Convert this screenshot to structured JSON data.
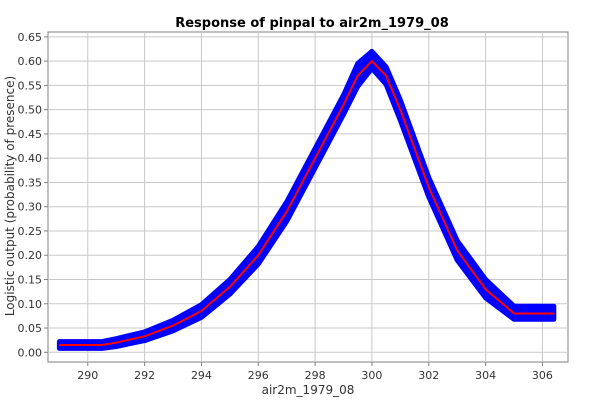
{
  "chart_data": {
    "type": "line",
    "title": "Response of pinpal to air2m_1979_08",
    "xlabel": "air2m_1979_08",
    "ylabel": "Logistic output (probability of presence)",
    "xlim": [
      288.6,
      306.9
    ],
    "ylim": [
      -0.02,
      0.66
    ],
    "x_ticks": [
      290,
      292,
      294,
      296,
      298,
      300,
      302,
      304,
      306
    ],
    "y_ticks": [
      0.0,
      0.05,
      0.1,
      0.15,
      0.2,
      0.25,
      0.3,
      0.35,
      0.4,
      0.45,
      0.5,
      0.55,
      0.6,
      0.65
    ],
    "grid": true,
    "series": [
      {
        "role": "mean",
        "color": "#ff0000",
        "x": [
          289.0,
          290.5,
          291.0,
          292.0,
          293.0,
          294.0,
          295.0,
          296.0,
          297.0,
          298.0,
          299.0,
          299.5,
          300.0,
          300.5,
          301.0,
          302.0,
          303.0,
          304.0,
          305.0,
          306.4
        ],
        "y": [
          0.015,
          0.015,
          0.02,
          0.033,
          0.055,
          0.085,
          0.135,
          0.2,
          0.29,
          0.4,
          0.51,
          0.57,
          0.6,
          0.57,
          0.5,
          0.34,
          0.21,
          0.13,
          0.08,
          0.08
        ]
      },
      {
        "role": "band",
        "color": "#0000ff",
        "x": [
          289.0,
          290.5,
          291.0,
          292.0,
          293.0,
          294.0,
          295.0,
          296.0,
          297.0,
          298.0,
          299.0,
          299.5,
          300.0,
          300.5,
          301.0,
          302.0,
          303.0,
          304.0,
          305.0,
          306.4
        ],
        "upper": [
          0.022,
          0.022,
          0.028,
          0.042,
          0.066,
          0.098,
          0.15,
          0.218,
          0.31,
          0.42,
          0.53,
          0.595,
          0.62,
          0.588,
          0.52,
          0.36,
          0.23,
          0.15,
          0.095,
          0.095
        ],
        "lower": [
          0.008,
          0.008,
          0.012,
          0.024,
          0.044,
          0.072,
          0.12,
          0.182,
          0.27,
          0.38,
          0.49,
          0.548,
          0.585,
          0.552,
          0.478,
          0.32,
          0.19,
          0.112,
          0.068,
          0.068
        ]
      }
    ],
    "colors": {
      "band": "#0000ff",
      "mean": "#ff0000",
      "grid": "#c8c8c8",
      "frame": "#808080"
    }
  }
}
